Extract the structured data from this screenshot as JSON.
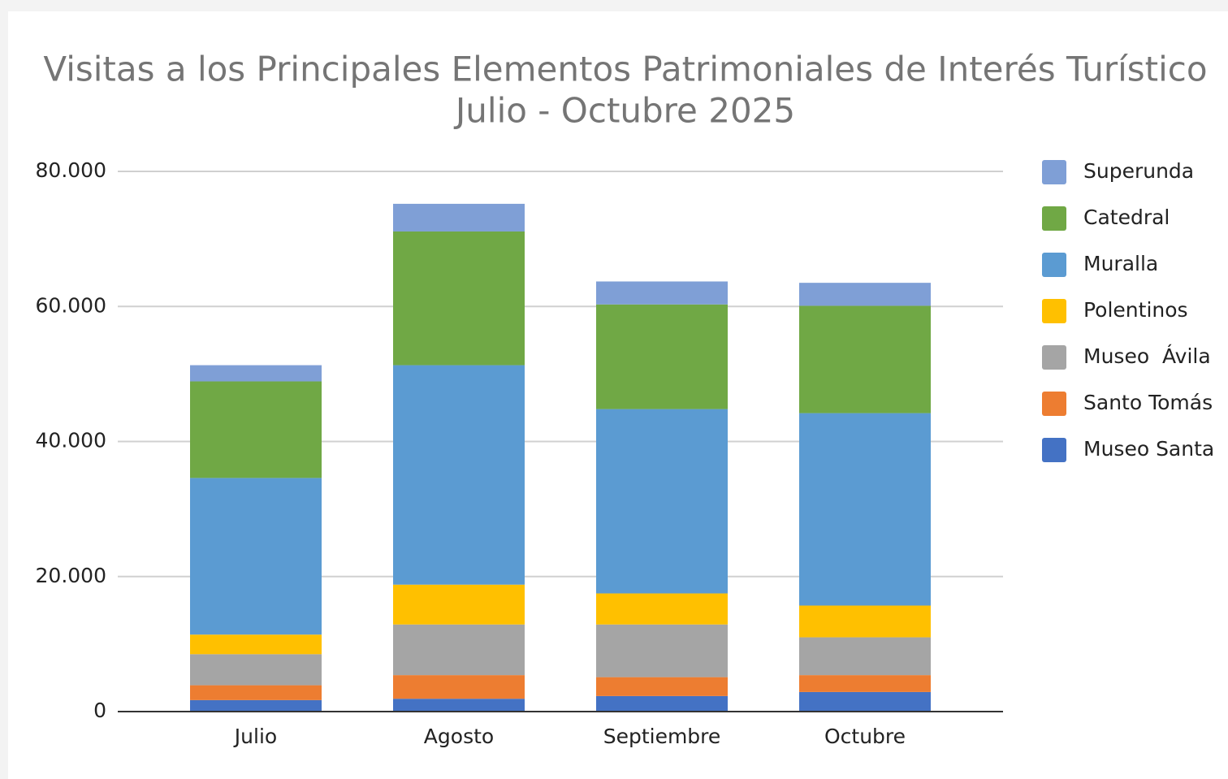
{
  "chart_data": {
    "type": "stacked_bar",
    "title": "Visitas a los Principales Elementos Patrimoniales de Interés Turístico",
    "subtitle": "Julio - Octubre 2025",
    "categories": [
      "Julio",
      "Agosto",
      "Septiembre",
      "Octubre"
    ],
    "series": [
      {
        "name": "Museo Santa",
        "color": "#4472c4",
        "values": [
          1700,
          1900,
          2300,
          2900
        ]
      },
      {
        "name": "Santo Tomás",
        "color": "#ed7d31",
        "values": [
          2200,
          3500,
          2800,
          2500
        ]
      },
      {
        "name": "Museo  Ávila",
        "color": "#a5a5a5",
        "values": [
          4600,
          7500,
          7800,
          5600
        ]
      },
      {
        "name": "Polentinos",
        "color": "#ffc000",
        "values": [
          2900,
          5900,
          4600,
          4700
        ]
      },
      {
        "name": "Muralla",
        "color": "#5b9bd2",
        "values": [
          23200,
          32500,
          27300,
          28500
        ]
      },
      {
        "name": "Catedral",
        "color": "#70a845",
        "values": [
          14300,
          19800,
          15500,
          15900
        ]
      },
      {
        "name": "Superunda",
        "color": "#7f9fd6",
        "values": [
          2400,
          4100,
          3400,
          3400
        ]
      }
    ],
    "ylim": [
      0,
      80000
    ],
    "yticks": [
      0,
      {
        "value": 20000,
        "label": "20.000"
      },
      {
        "value": 40000,
        "label": "40.000"
      },
      {
        "value": 60000,
        "label": "60.000"
      },
      {
        "value": 80000,
        "label": "80.000"
      }
    ],
    "grid": true,
    "legend": "right"
  }
}
